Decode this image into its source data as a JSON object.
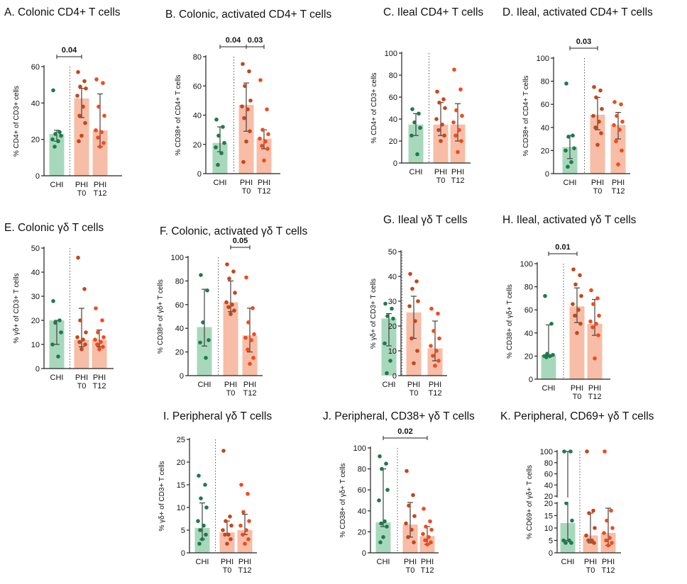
{
  "colors": {
    "chi_bar": "#a8d8bc",
    "chi_dot": "#1e7a4e",
    "phi_bar": "#f7bda6",
    "t0_dot": "#c4471b",
    "t12_dot": "#f24a1b",
    "axis": "#222222",
    "err": "#444444"
  },
  "chart_data": [
    {
      "id": "A",
      "type": "bar",
      "title": "A. Colonic CD4+ T cells",
      "ylabel": "% CD4+ of CD3+ cells",
      "ylim": [
        0,
        60
      ],
      "ticks": [
        0,
        20,
        40,
        60
      ],
      "categories": [
        "CHI",
        "PHI T0",
        "PHI T12"
      ],
      "series": [
        {
          "name": "CHI",
          "mean": 23,
          "err": [
            19,
            25
          ],
          "points": [
            47,
            24,
            23,
            22,
            20,
            19,
            16
          ]
        },
        {
          "name": "PHI T0",
          "mean": 42.5,
          "err": [
            32,
            48
          ],
          "points": [
            57,
            52,
            49,
            48,
            44,
            38,
            33,
            29,
            22,
            19
          ]
        },
        {
          "name": "PHI T12",
          "mean": 25,
          "err": [
            16,
            45
          ],
          "points": [
            53,
            51,
            38,
            33,
            25,
            24,
            21,
            18,
            16
          ]
        }
      ],
      "brackets": [
        {
          "from": 0,
          "to": 1,
          "label": "0.04"
        }
      ]
    },
    {
      "id": "B",
      "type": "bar",
      "title": "B. Colonic, activated CD4+ T cells",
      "ylabel": "% CD38+ of CD4+ T cells",
      "ylim": [
        0,
        80
      ],
      "ticks": [
        0,
        20,
        40,
        60,
        80
      ],
      "categories": [
        "CHI",
        "PHI T0",
        "PHI T12"
      ],
      "series": [
        {
          "name": "CHI",
          "mean": 21,
          "err": [
            15,
            32
          ],
          "points": [
            37,
            32,
            26,
            21,
            18,
            14,
            6
          ]
        },
        {
          "name": "PHI T0",
          "mean": 47,
          "err": [
            29,
            62
          ],
          "points": [
            75,
            70,
            60,
            50,
            46,
            44,
            38,
            29,
            22,
            8
          ]
        },
        {
          "name": "PHI T12",
          "mean": 24,
          "err": [
            17,
            30
          ],
          "points": [
            64,
            44,
            30,
            27,
            24,
            22,
            19,
            17,
            9
          ]
        }
      ],
      "brackets": [
        {
          "from": 0,
          "to": 1,
          "label": "0.04"
        },
        {
          "from": 1,
          "to": 2,
          "label": "0.03"
        }
      ]
    },
    {
      "id": "C",
      "type": "bar",
      "title": "C. Ileal CD4+ T cells",
      "ylabel": "% CD4+ of CD3+ cells",
      "ylim": [
        0,
        100
      ],
      "ticks": [
        0,
        20,
        40,
        60,
        80,
        100
      ],
      "categories": [
        "CHI",
        "PHI T0",
        "PHI T12"
      ],
      "series": [
        {
          "name": "CHI",
          "mean": 35,
          "err": [
            25,
            45
          ],
          "points": [
            49,
            45,
            37,
            32,
            25,
            8
          ]
        },
        {
          "name": "PHI T0",
          "mean": 35,
          "err": [
            25,
            55
          ],
          "points": [
            65,
            58,
            55,
            50,
            40,
            35,
            30,
            25,
            20
          ]
        },
        {
          "name": "PHI T12",
          "mean": 35,
          "err": [
            20,
            54
          ],
          "points": [
            85,
            67,
            48,
            43,
            37,
            30,
            25,
            20,
            10
          ]
        }
      ],
      "brackets": []
    },
    {
      "id": "D",
      "type": "bar",
      "title": "D. Ileal, activated CD4+ T cells",
      "ylabel": "% CD38+ of CD4+ T cells",
      "ylim": [
        0,
        100
      ],
      "ticks": [
        0,
        20,
        40,
        60,
        80,
        100
      ],
      "categories": [
        "CHI",
        "PHI T0",
        "PHI T12"
      ],
      "series": [
        {
          "name": "CHI",
          "mean": 23,
          "err": [
            13,
            33
          ],
          "points": [
            78,
            33,
            32,
            22,
            20,
            10,
            6
          ]
        },
        {
          "name": "PHI T0",
          "mean": 51,
          "err": [
            38,
            66
          ],
          "points": [
            75,
            72,
            66,
            56,
            50,
            45,
            40,
            35,
            25
          ]
        },
        {
          "name": "PHI T12",
          "mean": 42,
          "err": [
            30,
            53
          ],
          "points": [
            62,
            60,
            50,
            45,
            42,
            38,
            28,
            20,
            8
          ]
        }
      ],
      "brackets": [
        {
          "from": 0,
          "to": 1,
          "label": "0.03"
        }
      ]
    },
    {
      "id": "E",
      "type": "bar",
      "title": "E. Colonic γδ T cells",
      "ylabel": "% γδ+ of CD3+ T cells",
      "ylim": [
        0,
        50
      ],
      "ticks": [
        0,
        10,
        20,
        30,
        40,
        50
      ],
      "categories": [
        "CHI",
        "PHI T0",
        "PHI T12"
      ],
      "series": [
        {
          "name": "CHI",
          "mean": 20,
          "err": [
            10,
            20
          ],
          "points": [
            28,
            20,
            19,
            15,
            10,
            5
          ]
        },
        {
          "name": "PHI T0",
          "mean": 12,
          "err": [
            9,
            25
          ],
          "points": [
            46,
            33,
            20,
            15,
            13,
            12,
            11,
            10,
            8
          ]
        },
        {
          "name": "PHI T12",
          "mean": 12,
          "err": [
            9,
            16
          ],
          "points": [
            25,
            20,
            15,
            13,
            12,
            11,
            10,
            9,
            8
          ]
        }
      ],
      "brackets": []
    },
    {
      "id": "F",
      "type": "bar",
      "title": "F. Colonic, activated γδ T cells",
      "ylabel": "% CD38+ of γδ+ T cells",
      "ylim": [
        0,
        100
      ],
      "ticks": [
        0,
        20,
        40,
        60,
        80,
        100
      ],
      "categories": [
        "CHI",
        "PHI T0",
        "PHI T12"
      ],
      "series": [
        {
          "name": "CHI",
          "mean": 41,
          "err": [
            25,
            73
          ],
          "points": [
            85,
            72,
            45,
            30,
            28,
            15
          ]
        },
        {
          "name": "PHI T0",
          "mean": 62,
          "err": [
            54,
            80
          ],
          "points": [
            94,
            88,
            82,
            70,
            62,
            60,
            58,
            55,
            52
          ]
        },
        {
          "name": "PHI T12",
          "mean": 34,
          "err": [
            20,
            57
          ],
          "points": [
            83,
            57,
            45,
            35,
            32,
            30,
            22,
            15,
            10
          ]
        }
      ],
      "brackets": [
        {
          "from": 1,
          "to": 2,
          "label": "0.05"
        }
      ]
    },
    {
      "id": "G",
      "type": "bar",
      "title": "G. Ileal γδ T cells",
      "ylabel": "% γδ+ of CD3+ T cells",
      "ylim": [
        0,
        50
      ],
      "ticks": [
        0,
        10,
        20,
        30,
        40,
        50
      ],
      "categories": [
        "CHI",
        "PHI T0",
        "PHI T12"
      ],
      "series": [
        {
          "name": "CHI",
          "mean": 23,
          "err": [
            12,
            25
          ],
          "points": [
            29,
            27,
            24,
            23,
            13,
            6,
            1
          ]
        },
        {
          "name": "PHI T0",
          "mean": 25.5,
          "err": [
            15,
            32
          ],
          "points": [
            41,
            38,
            35,
            30,
            28,
            22,
            15,
            10,
            5
          ]
        },
        {
          "name": "PHI T12",
          "mean": 11,
          "err": [
            6,
            22
          ],
          "points": [
            27,
            25,
            18,
            15,
            12,
            10,
            8,
            6,
            4
          ]
        }
      ],
      "brackets": []
    },
    {
      "id": "H",
      "type": "bar",
      "title": "H. Ileal, activated γδ T cells",
      "ylabel": "% CD38+ of γδ+ T cells",
      "ylim": [
        0,
        100
      ],
      "ticks": [
        0,
        20,
        40,
        60,
        80,
        100
      ],
      "categories": [
        "CHI",
        "PHI T0",
        "PHI T12"
      ],
      "series": [
        {
          "name": "CHI",
          "mean": 21,
          "err": [
            20,
            47
          ],
          "points": [
            72,
            48,
            22,
            21,
            20,
            20,
            19
          ]
        },
        {
          "name": "PHI T0",
          "mean": 63,
          "err": [
            49,
            79
          ],
          "points": [
            95,
            90,
            82,
            72,
            65,
            60,
            55,
            48,
            40
          ]
        },
        {
          "name": "PHI T12",
          "mean": 48,
          "err": [
            38,
            69
          ],
          "points": [
            77,
            70,
            65,
            55,
            50,
            48,
            45,
            38,
            18
          ]
        }
      ],
      "brackets": [
        {
          "from": 0,
          "to": 1,
          "label": "0.01"
        }
      ]
    },
    {
      "id": "I",
      "type": "bar",
      "title": "I. Peripheral γδ T cells",
      "ylabel": "% γδ+ of CD3+ T cells",
      "ylim": [
        0,
        25
      ],
      "ticks": [
        0,
        5,
        10,
        15,
        20,
        25
      ],
      "categories": [
        "CHI",
        "PHI T0",
        "PHI T12"
      ],
      "series": [
        {
          "name": "CHI",
          "mean": 5.5,
          "err": [
            3,
            11
          ],
          "points": [
            17,
            15,
            12,
            10,
            7,
            6,
            5,
            4,
            3,
            2
          ]
        },
        {
          "name": "PHI T0",
          "mean": 4.5,
          "err": [
            4,
            7
          ],
          "points": [
            22.5,
            8,
            7,
            6,
            5,
            4,
            4,
            3,
            2
          ]
        },
        {
          "name": "PHI T12",
          "mean": 5,
          "err": [
            4,
            8.5
          ],
          "points": [
            15,
            13,
            9,
            7,
            6,
            5,
            4,
            3,
            2
          ]
        }
      ],
      "brackets": []
    },
    {
      "id": "J",
      "type": "bar",
      "title": "J. Peripheral, CD38+ γδ T cells",
      "ylabel": "% CD38+ of γδ+ T cells",
      "ylim": [
        0,
        100
      ],
      "ticks": [
        0,
        20,
        40,
        60,
        80,
        100
      ],
      "categories": [
        "CHI",
        "PHI T0",
        "PHI T12"
      ],
      "series": [
        {
          "name": "CHI",
          "mean": 29,
          "err": [
            25,
            80
          ],
          "points": [
            92,
            85,
            80,
            60,
            50,
            30,
            28,
            25,
            15,
            10
          ]
        },
        {
          "name": "PHI T0",
          "mean": 27,
          "err": [
            15,
            48
          ],
          "points": [
            78,
            55,
            45,
            35,
            28,
            22,
            15,
            10
          ]
        },
        {
          "name": "PHI T12",
          "mean": 16,
          "err": [
            8,
            25
          ],
          "points": [
            42,
            30,
            25,
            22,
            18,
            15,
            12,
            10,
            8
          ]
        }
      ],
      "brackets": [
        {
          "from": 0,
          "to": 2,
          "label": "0.02"
        }
      ]
    },
    {
      "id": "K",
      "type": "bar",
      "title": "K. Peripheral, CD69+ γδ T cells",
      "ylabel": "% CD69+ of γδ+ T cells",
      "ylim": [
        0,
        100
      ],
      "ticks": [
        0,
        5,
        10,
        15,
        20,
        40,
        60,
        80,
        100
      ],
      "axis_break": [
        20,
        20
      ],
      "categories": [
        "CHI",
        "PHI T0",
        "PHI T12"
      ],
      "series": [
        {
          "name": "CHI",
          "mean": 12,
          "err": [
            5,
            100
          ],
          "points": [
            100,
            100,
            20,
            13,
            5,
            5,
            4,
            4
          ]
        },
        {
          "name": "PHI T0",
          "mean": 7,
          "err": [
            4,
            16
          ],
          "points": [
            100,
            17,
            16,
            10,
            7,
            5,
            5,
            4
          ]
        },
        {
          "name": "PHI T12",
          "mean": 8,
          "err": [
            3,
            18
          ],
          "points": [
            100,
            17,
            13,
            10,
            8,
            6,
            5,
            4,
            3
          ]
        }
      ],
      "brackets": []
    }
  ]
}
